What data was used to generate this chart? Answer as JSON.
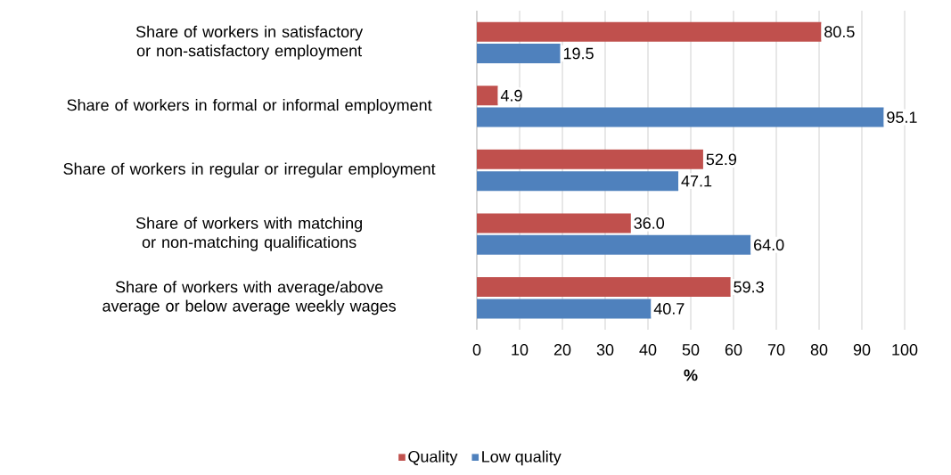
{
  "chart_data": {
    "type": "bar",
    "orientation": "horizontal",
    "xlabel": "%",
    "categories": [
      "Share of workers in satisfactory or non-satisfactory employment",
      "Share of workers in formal or informal employment",
      "Share of workers in regular or irregular employment",
      "Share of workers with matching or non-matching qualifications",
      "Share of workers with average/above average or below average weekly wages"
    ],
    "series": [
      {
        "name": "Quality",
        "color": "#c0504d",
        "values": [
          80.5,
          4.9,
          52.9,
          36.0,
          59.3
        ],
        "value_labels": [
          "80.5",
          "4.9",
          "52.9",
          "36.0",
          "59.3"
        ]
      },
      {
        "name": "Low quality",
        "color": "#4f81bd",
        "values": [
          19.5,
          95.1,
          47.1,
          64.0,
          40.7
        ],
        "value_labels": [
          "19.5",
          "95.1",
          "47.1",
          "64.0",
          "40.7"
        ]
      }
    ],
    "xlim": [
      0,
      100
    ],
    "xticks": [
      0,
      10,
      20,
      30,
      40,
      50,
      60,
      70,
      80,
      90,
      100
    ],
    "grid": "x",
    "legend": "bottom"
  }
}
